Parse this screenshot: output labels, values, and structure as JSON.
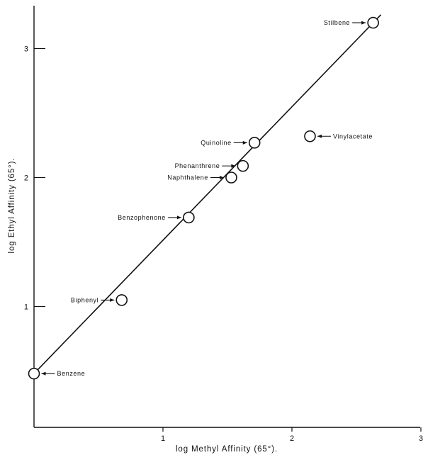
{
  "chart_data": {
    "type": "scatter",
    "xlabel": "log Methyl Affinity (65°).",
    "ylabel": "log Ethyl Affinity (65°).",
    "xlim": [
      0,
      3
    ],
    "ylim": [
      0,
      3.35
    ],
    "x_ticks": [
      {
        "value": 1,
        "label": "1"
      },
      {
        "value": 2,
        "label": "2"
      },
      {
        "value": 3,
        "label": "3"
      }
    ],
    "y_ticks": [
      {
        "value": 1,
        "label": "1"
      },
      {
        "value": 2,
        "label": "2"
      },
      {
        "value": 3,
        "label": "3"
      }
    ],
    "points": [
      {
        "name": "Benzene",
        "x": 0.0,
        "y": 0.48,
        "label_side": "right"
      },
      {
        "name": "Biphenyl",
        "x": 0.68,
        "y": 1.05,
        "label_side": "left"
      },
      {
        "name": "Benzophenone",
        "x": 1.2,
        "y": 1.69,
        "label_side": "left"
      },
      {
        "name": "Naphthalene",
        "x": 1.53,
        "y": 2.0,
        "label_side": "left"
      },
      {
        "name": "Phenanthrene",
        "x": 1.62,
        "y": 2.09,
        "label_side": "left"
      },
      {
        "name": "Quinoline",
        "x": 1.71,
        "y": 2.27,
        "label_side": "left"
      },
      {
        "name": "Vinylacetate",
        "x": 2.14,
        "y": 2.32,
        "label_side": "right"
      },
      {
        "name": "Stilbene",
        "x": 2.63,
        "y": 3.2,
        "label_side": "left"
      }
    ],
    "fit_line": {
      "x": [
        0.0,
        2.63
      ],
      "y": [
        0.48,
        3.2
      ],
      "extend": [
        -0.03,
        2.69
      ]
    },
    "grid": false,
    "legend": "none"
  }
}
